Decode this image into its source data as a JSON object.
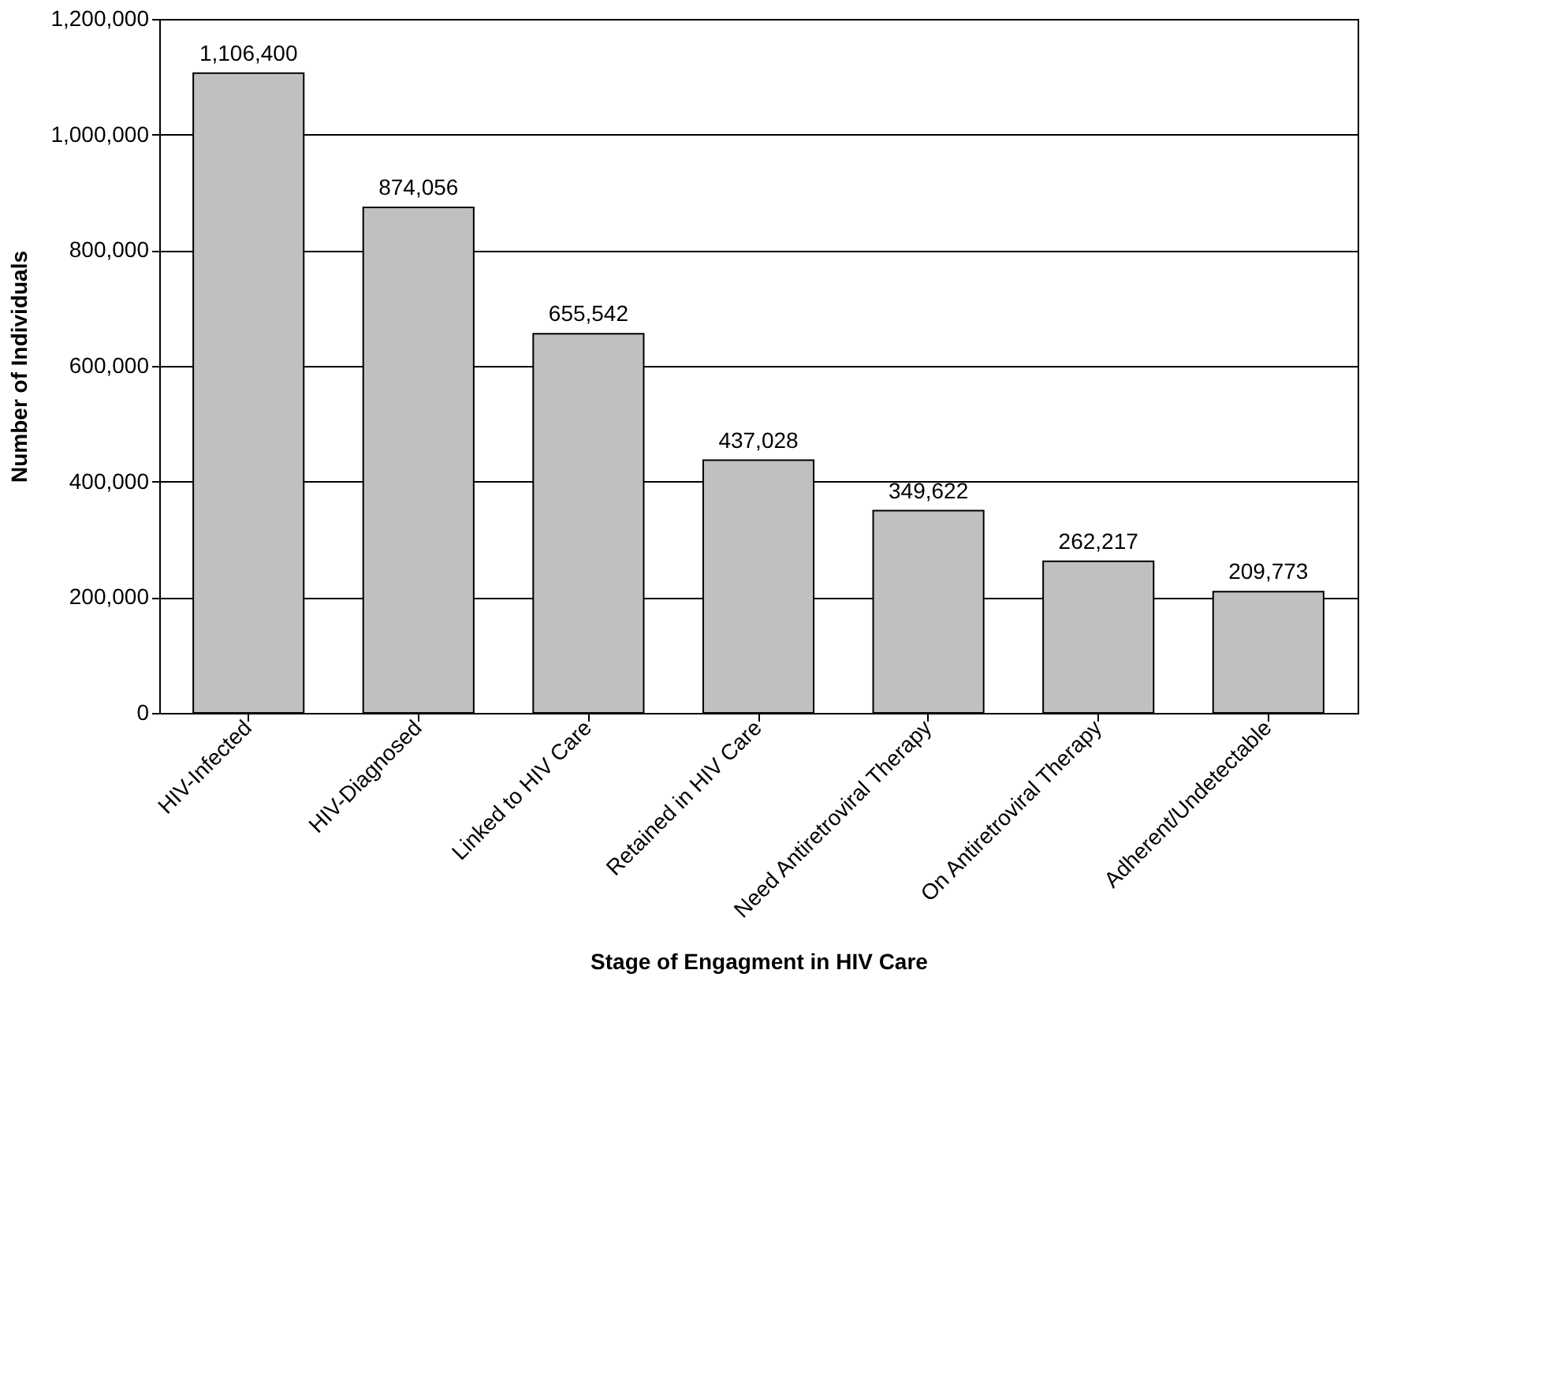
{
  "chart_data": {
    "type": "bar",
    "categories": [
      "HIV-Infected",
      "HIV-Diagnosed",
      "Linked to HIV Care",
      "Retained in HIV Care",
      "Need Antiretroviral Therapy",
      "On Antiretroviral Therapy",
      "Adherent/Undetectable"
    ],
    "values": [
      1106400,
      874056,
      655542,
      437028,
      349622,
      262217,
      209773
    ],
    "value_labels": [
      "1,106,400",
      "874,056",
      "655,542",
      "437,028",
      "349,622",
      "262,217",
      "209,773"
    ],
    "color": "#c0c0c0",
    "xlabel": "Stage of Engagment in HIV Care",
    "ylabel": "Number of Individuals",
    "ylim": [
      0,
      1200000
    ],
    "yticks": [
      0,
      {
        "value": 200000,
        "label": "200,000"
      },
      {
        "value": 400000,
        "label": "400,000"
      },
      {
        "value": 600000,
        "label": "600,000"
      },
      {
        "value": 800000,
        "label": "800,000"
      },
      {
        "value": 1000000,
        "label": "1,000,000"
      },
      {
        "value": 1200000,
        "label": "1,200,000"
      }
    ],
    "grid": "y"
  }
}
